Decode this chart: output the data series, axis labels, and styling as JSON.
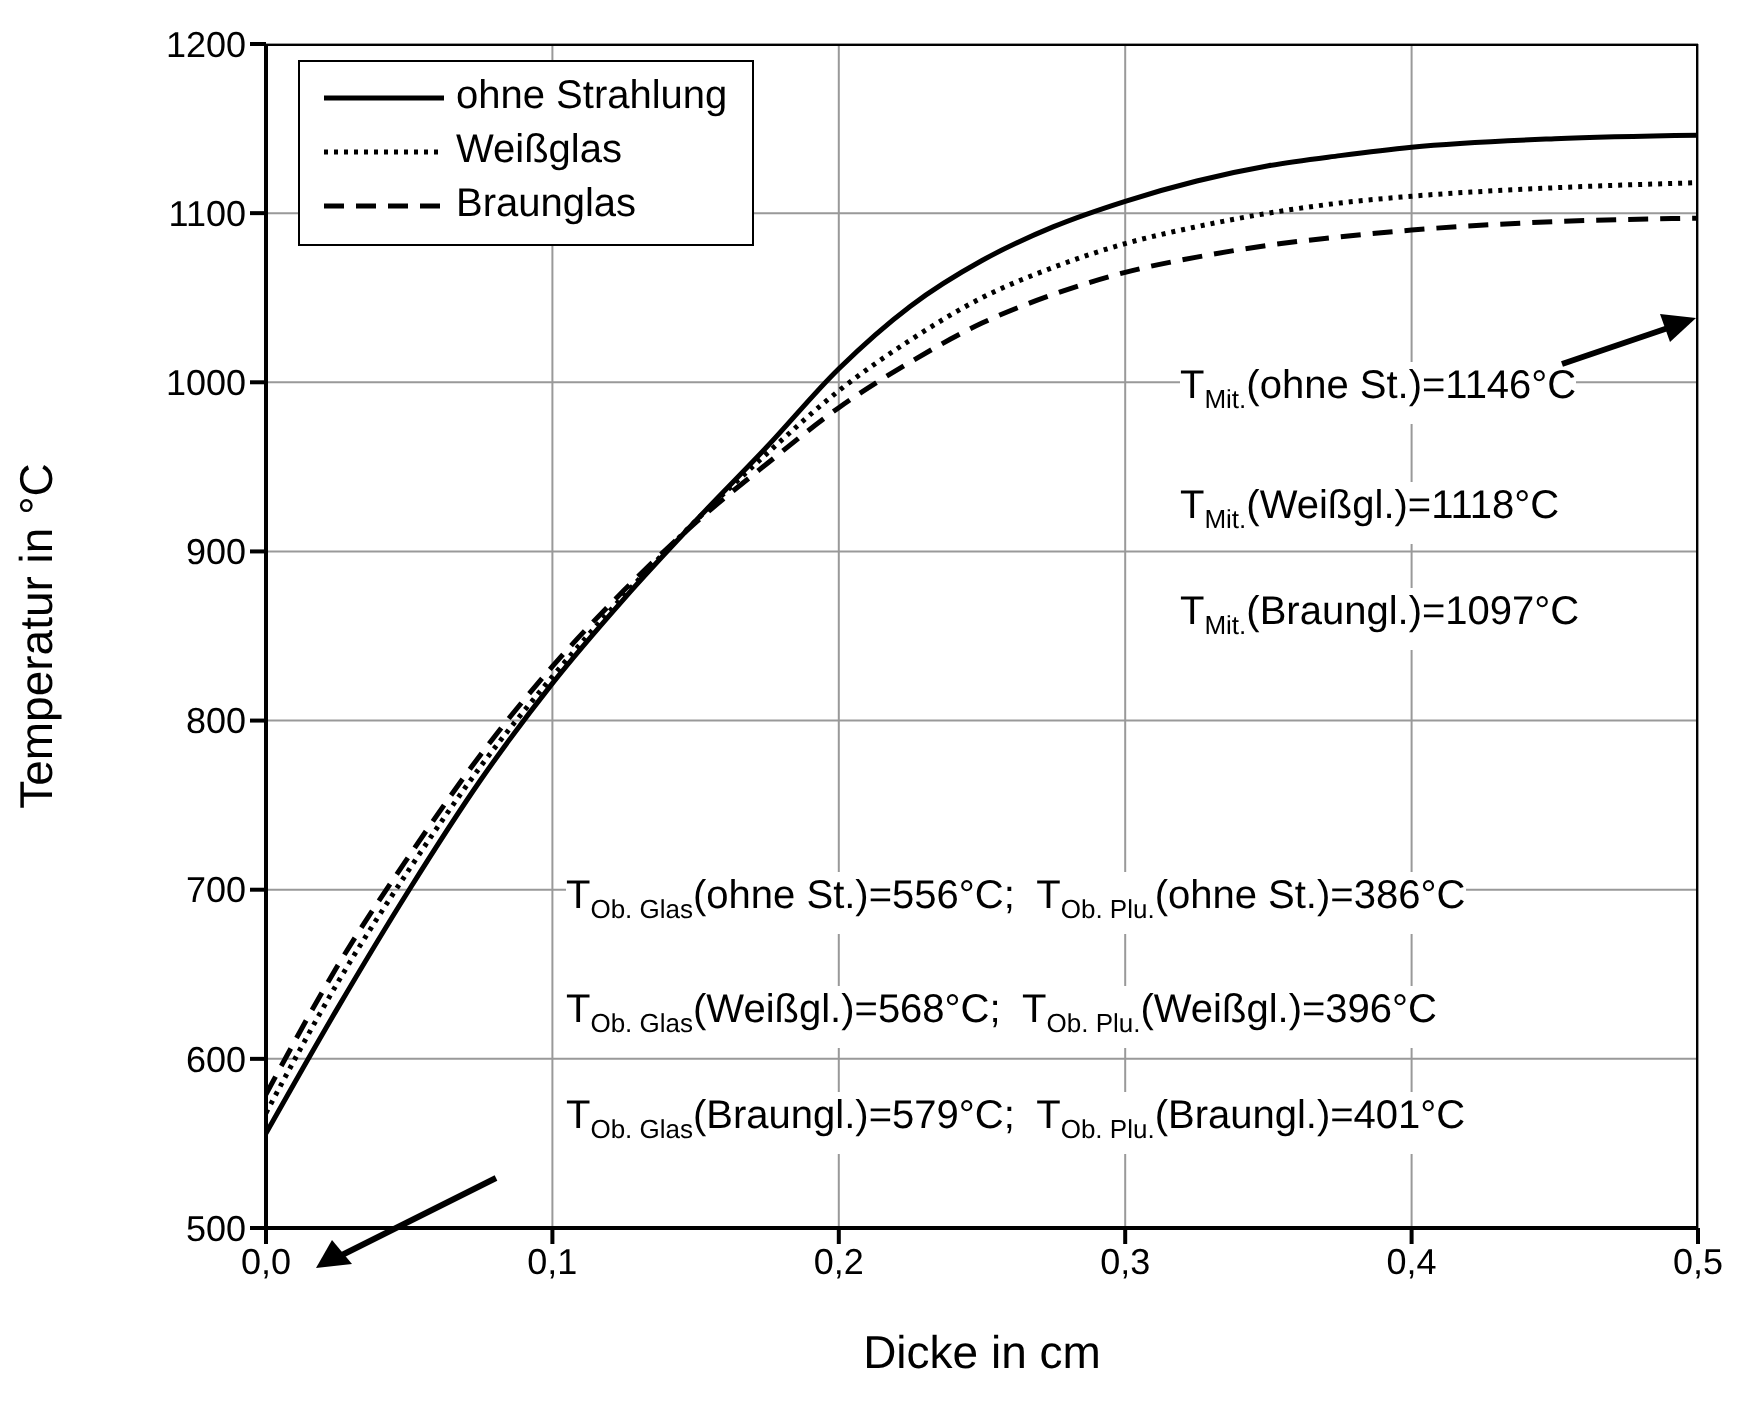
{
  "chart_data": {
    "type": "line",
    "xlabel": "Dicke in cm",
    "ylabel": "Temperatur in °C",
    "x": [
      0,
      0.025,
      0.05,
      0.075,
      0.1,
      0.125,
      0.15,
      0.175,
      0.2,
      0.225,
      0.25,
      0.275,
      0.3,
      0.325,
      0.35,
      0.375,
      0.4,
      0.45,
      0.5
    ],
    "series": [
      {
        "name": "ohne Strahlung",
        "color": "#000000",
        "line_style": "solid",
        "values": [
          556,
          630,
          700,
          765,
          822,
          872,
          918,
          962,
          1008,
          1045,
          1072,
          1092,
          1107,
          1119,
          1128,
          1134,
          1139,
          1144,
          1146
        ]
      },
      {
        "name": "Weißglas",
        "color": "#000000",
        "line_style": "dotted",
        "values": [
          568,
          645,
          712,
          773,
          826,
          874,
          918,
          958,
          995,
          1025,
          1050,
          1068,
          1082,
          1092,
          1100,
          1106,
          1110,
          1115,
          1118
        ]
      },
      {
        "name": "Braunglas",
        "color": "#000000",
        "line_style": "dashed",
        "values": [
          579,
          655,
          720,
          780,
          832,
          877,
          917,
          952,
          985,
          1012,
          1035,
          1052,
          1065,
          1074,
          1081,
          1086,
          1090,
          1095,
          1097
        ]
      }
    ],
    "xlim": [
      0,
      0.5
    ],
    "xticks": [
      {
        "value": 0,
        "label": "0,0"
      },
      {
        "value": 0.1,
        "label": "0,1"
      },
      {
        "value": 0.2,
        "label": "0,2"
      },
      {
        "value": 0.3,
        "label": "0,3"
      },
      {
        "value": 0.4,
        "label": "0,4"
      },
      {
        "value": 0.5,
        "label": "0,5"
      }
    ],
    "ylim": [
      500,
      1200
    ],
    "yticks": [
      500,
      600,
      700,
      800,
      900,
      1000,
      1100,
      1200
    ],
    "grid": true,
    "legend": "top left",
    "marker": "none",
    "annotations": [
      "T$_{Mit.}$(ohne St.)=1146°C",
      "T$_{Mit.}$(Weißgl.)=1118°C",
      "T$_{Mit.}$(Braungl.)=1097°C",
      "T$_{Ob. Glas}$(ohne St.)=556°C;  T$_{Ob. Plu.}$(ohne St.)=386°C",
      "T$_{Ob. Glas}$(Weißgl.)=568°C;  T$_{Ob. Plu.}$(Weißgl.)=396°C",
      "T$_{Ob. Glas}$(Braungl.)=579°C;  T$_{Ob. Plu.}$(Braungl.)=401°C"
    ]
  }
}
